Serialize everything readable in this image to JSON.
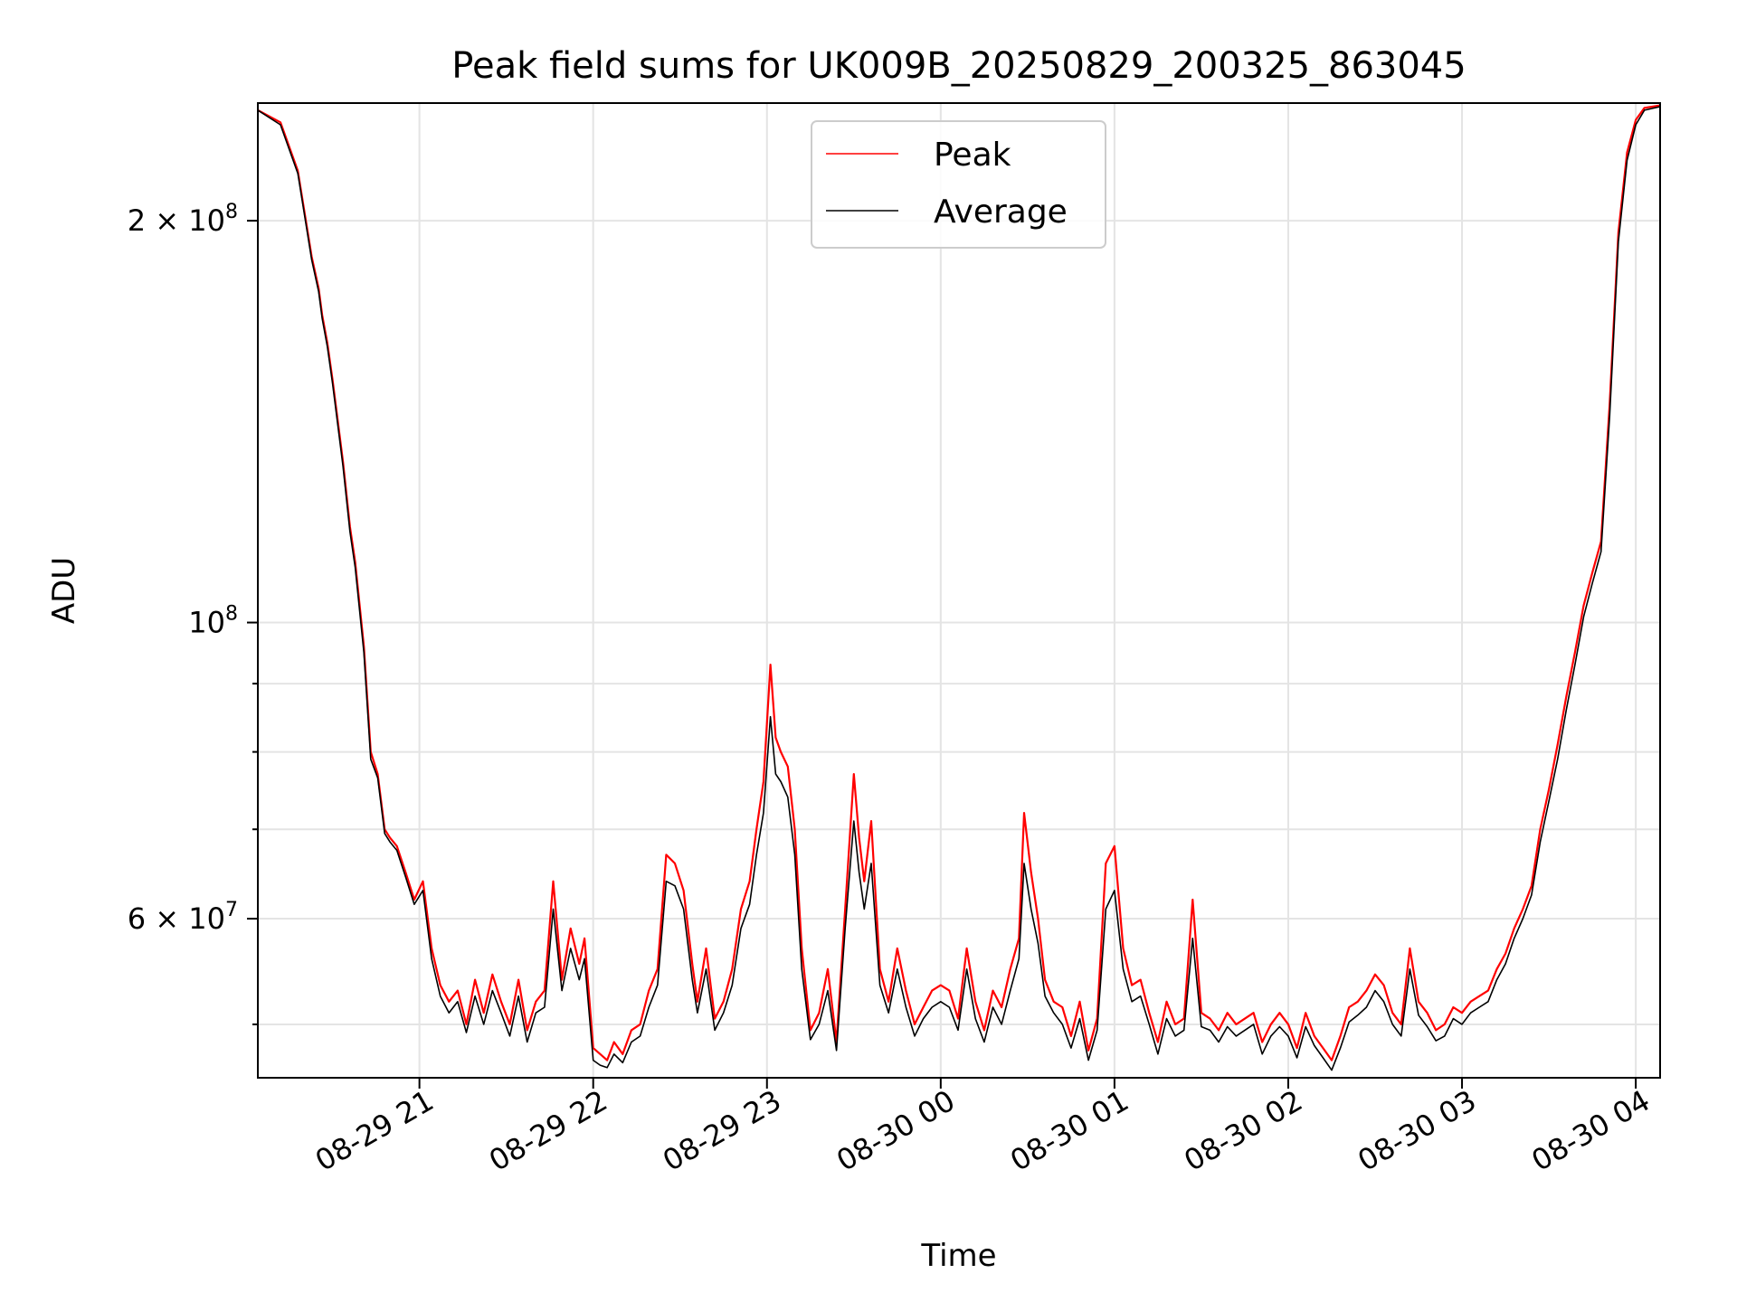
{
  "chart_data": {
    "type": "line",
    "title": "Peak field sums for UK009B_20250829_200325_863045",
    "xlabel": "Time",
    "ylabel": "ADU",
    "x_unit": "hours",
    "xlim": [
      20.07,
      28.14
    ],
    "ylim": [
      45600000,
      245000000
    ],
    "yscale": "log",
    "grid": true,
    "legend": "upper-center",
    "x_ticks": [
      {
        "value": 21,
        "label": "08-29 21"
      },
      {
        "value": 22,
        "label": "08-29 22"
      },
      {
        "value": 23,
        "label": "08-29 23"
      },
      {
        "value": 24,
        "label": "08-30 00"
      },
      {
        "value": 25,
        "label": "08-30 01"
      },
      {
        "value": 26,
        "label": "08-30 02"
      },
      {
        "value": 27,
        "label": "08-30 03"
      },
      {
        "value": 28,
        "label": "08-30 04"
      }
    ],
    "y_ticks": [
      {
        "value": 200000000,
        "mantissa": "2",
        "exponent": "8"
      },
      {
        "value": 100000000,
        "mantissa": "",
        "exponent": "8"
      },
      {
        "value": 60000000,
        "mantissa": "6",
        "exponent": "7"
      }
    ],
    "y_minor": [
      50000000,
      70000000,
      80000000,
      90000000
    ],
    "series": [
      {
        "name": "Peak",
        "color": "#ff0000",
        "x": [
          20.07,
          20.2,
          20.3,
          20.38,
          20.42,
          20.44,
          20.47,
          20.5,
          20.56,
          20.6,
          20.63,
          20.68,
          20.72,
          20.76,
          20.8,
          20.83,
          20.87,
          20.92,
          20.97,
          21.02,
          21.07,
          21.12,
          21.17,
          21.22,
          21.27,
          21.32,
          21.37,
          21.42,
          21.47,
          21.52,
          21.57,
          21.62,
          21.67,
          21.72,
          21.77,
          21.82,
          21.87,
          21.92,
          21.95,
          22.0,
          22.04,
          22.08,
          22.12,
          22.17,
          22.22,
          22.27,
          22.32,
          22.37,
          22.42,
          22.47,
          22.52,
          22.57,
          22.6,
          22.65,
          22.7,
          22.75,
          22.8,
          22.85,
          22.9,
          22.94,
          22.98,
          23.02,
          23.05,
          23.08,
          23.12,
          23.16,
          23.2,
          23.25,
          23.3,
          23.35,
          23.4,
          23.45,
          23.5,
          23.53,
          23.56,
          23.6,
          23.65,
          23.7,
          23.75,
          23.8,
          23.85,
          23.9,
          23.95,
          24.0,
          24.05,
          24.1,
          24.15,
          24.2,
          24.25,
          24.3,
          24.35,
          24.4,
          24.45,
          24.48,
          24.52,
          24.56,
          24.6,
          24.65,
          24.7,
          24.75,
          24.8,
          24.85,
          24.9,
          24.95,
          25.0,
          25.05,
          25.1,
          25.15,
          25.2,
          25.25,
          25.3,
          25.35,
          25.4,
          25.45,
          25.5,
          25.55,
          25.6,
          25.65,
          25.7,
          25.75,
          25.8,
          25.85,
          25.9,
          25.95,
          26.0,
          26.05,
          26.1,
          26.15,
          26.2,
          26.25,
          26.3,
          26.35,
          26.4,
          26.45,
          26.5,
          26.55,
          26.6,
          26.65,
          26.7,
          26.75,
          26.8,
          26.85,
          26.9,
          26.95,
          27.0,
          27.05,
          27.1,
          27.15,
          27.2,
          27.25,
          27.3,
          27.35,
          27.4,
          27.45,
          27.5,
          27.55,
          27.6,
          27.65,
          27.7,
          27.75,
          27.8,
          27.85,
          27.9,
          27.95,
          28.0,
          28.05,
          28.14
        ],
        "y": [
          242000000,
          237000000,
          218000000,
          188000000,
          178000000,
          170000000,
          162000000,
          152000000,
          132000000,
          118000000,
          111000000,
          96000000,
          80000000,
          77000000,
          70000000,
          69000000,
          68000000,
          65000000,
          62000000,
          64000000,
          57000000,
          53500000,
          52000000,
          53000000,
          50000000,
          54000000,
          51000000,
          54500000,
          52000000,
          50000000,
          54000000,
          49500000,
          52000000,
          53000000,
          64000000,
          54000000,
          59000000,
          55500000,
          58000000,
          48000000,
          47500000,
          47000000,
          48500000,
          47500000,
          49500000,
          50000000,
          53000000,
          55000000,
          67000000,
          66000000,
          63000000,
          55500000,
          52000000,
          57000000,
          50500000,
          52000000,
          55000000,
          61000000,
          64000000,
          70000000,
          76000000,
          93000000,
          82000000,
          80000000,
          78000000,
          70000000,
          57000000,
          49500000,
          51000000,
          55000000,
          48500000,
          61000000,
          77000000,
          69000000,
          64000000,
          71000000,
          55000000,
          52000000,
          57000000,
          53000000,
          50000000,
          51500000,
          53000000,
          53500000,
          53000000,
          50500000,
          57000000,
          52000000,
          49500000,
          53000000,
          51500000,
          55000000,
          58000000,
          72000000,
          65000000,
          60000000,
          54000000,
          52000000,
          51500000,
          49000000,
          52000000,
          47800000,
          50500000,
          66000000,
          68000000,
          57000000,
          53500000,
          54000000,
          51000000,
          48500000,
          52000000,
          50000000,
          50500000,
          62000000,
          51000000,
          50500000,
          49500000,
          51000000,
          50000000,
          50500000,
          51000000,
          48500000,
          50000000,
          51000000,
          50000000,
          48000000,
          51000000,
          49000000,
          48000000,
          47000000,
          49000000,
          51500000,
          52000000,
          53000000,
          54500000,
          53500000,
          51000000,
          50000000,
          57000000,
          52000000,
          51000000,
          49500000,
          50000000,
          51500000,
          51000000,
          52000000,
          52500000,
          53000000,
          55000000,
          56500000,
          59000000,
          61000000,
          63500000,
          70000000,
          75000000,
          81000000,
          88000000,
          95000000,
          103000000,
          109000000,
          115000000,
          146000000,
          196000000,
          225000000,
          238000000,
          243000000,
          244000000
        ]
      },
      {
        "name": "Average",
        "color": "#000000",
        "x": [
          20.07,
          20.2,
          20.3,
          20.38,
          20.42,
          20.44,
          20.47,
          20.5,
          20.56,
          20.6,
          20.63,
          20.68,
          20.72,
          20.76,
          20.8,
          20.83,
          20.87,
          20.92,
          20.97,
          21.02,
          21.07,
          21.12,
          21.17,
          21.22,
          21.27,
          21.32,
          21.37,
          21.42,
          21.47,
          21.52,
          21.57,
          21.62,
          21.67,
          21.72,
          21.77,
          21.82,
          21.87,
          21.92,
          21.95,
          22.0,
          22.04,
          22.08,
          22.12,
          22.17,
          22.22,
          22.27,
          22.32,
          22.37,
          22.42,
          22.47,
          22.52,
          22.57,
          22.6,
          22.65,
          22.7,
          22.75,
          22.8,
          22.85,
          22.9,
          22.94,
          22.98,
          23.02,
          23.05,
          23.08,
          23.12,
          23.16,
          23.2,
          23.25,
          23.3,
          23.35,
          23.4,
          23.45,
          23.5,
          23.53,
          23.56,
          23.6,
          23.65,
          23.7,
          23.75,
          23.8,
          23.85,
          23.9,
          23.95,
          24.0,
          24.05,
          24.1,
          24.15,
          24.2,
          24.25,
          24.3,
          24.35,
          24.4,
          24.45,
          24.48,
          24.52,
          24.56,
          24.6,
          24.65,
          24.7,
          24.75,
          24.8,
          24.85,
          24.9,
          24.95,
          25.0,
          25.05,
          25.1,
          25.15,
          25.2,
          25.25,
          25.3,
          25.35,
          25.4,
          25.45,
          25.5,
          25.55,
          25.6,
          25.65,
          25.7,
          25.75,
          25.8,
          25.85,
          25.9,
          25.95,
          26.0,
          26.05,
          26.1,
          26.15,
          26.2,
          26.25,
          26.3,
          26.35,
          26.4,
          26.45,
          26.5,
          26.55,
          26.6,
          26.65,
          26.7,
          26.75,
          26.8,
          26.85,
          26.9,
          26.95,
          27.0,
          27.05,
          27.1,
          27.15,
          27.2,
          27.25,
          27.3,
          27.35,
          27.4,
          27.45,
          27.5,
          27.55,
          27.6,
          27.65,
          27.7,
          27.75,
          27.8,
          27.85,
          27.9,
          27.95,
          28.0,
          28.05,
          28.14
        ],
        "y": [
          242000000,
          236000000,
          217000000,
          187000000,
          177000000,
          169000000,
          161000000,
          151000000,
          131000000,
          117000000,
          110000000,
          95000000,
          79000000,
          76500000,
          69500000,
          68500000,
          67500000,
          64500000,
          61500000,
          63000000,
          56000000,
          52500000,
          51000000,
          52000000,
          49300000,
          52500000,
          50000000,
          53000000,
          51000000,
          49000000,
          52500000,
          48500000,
          51000000,
          51500000,
          61000000,
          53000000,
          57000000,
          54000000,
          56000000,
          47000000,
          46600000,
          46400000,
          47500000,
          46800000,
          48500000,
          49000000,
          51500000,
          53500000,
          64000000,
          63500000,
          61000000,
          54000000,
          51000000,
          55000000,
          49500000,
          51000000,
          53500000,
          59000000,
          61500000,
          67000000,
          72000000,
          85000000,
          77000000,
          76000000,
          74000000,
          67000000,
          55000000,
          48700000,
          50000000,
          53000000,
          47800000,
          59000000,
          71000000,
          65000000,
          61000000,
          66000000,
          53500000,
          51000000,
          55000000,
          51500000,
          49000000,
          50500000,
          51500000,
          52000000,
          51500000,
          49500000,
          55000000,
          50500000,
          48500000,
          51500000,
          50000000,
          53000000,
          56000000,
          66000000,
          61000000,
          57500000,
          52500000,
          51000000,
          50000000,
          48000000,
          50500000,
          47000000,
          49500000,
          61000000,
          63000000,
          55000000,
          52000000,
          52500000,
          50000000,
          47500000,
          50500000,
          49000000,
          49500000,
          58000000,
          49800000,
          49500000,
          48500000,
          49800000,
          49000000,
          49500000,
          50000000,
          47500000,
          49000000,
          49800000,
          49000000,
          47200000,
          49800000,
          48200000,
          47200000,
          46200000,
          48000000,
          50200000,
          50800000,
          51500000,
          53000000,
          52000000,
          50000000,
          49000000,
          55000000,
          50800000,
          49800000,
          48600000,
          49000000,
          50500000,
          50000000,
          51000000,
          51500000,
          52000000,
          54000000,
          55500000,
          58000000,
          60000000,
          62500000,
          68500000,
          73500000,
          79000000,
          86000000,
          93000000,
          101000000,
          107000000,
          113000000,
          143000000,
          193000000,
          222000000,
          236000000,
          242000000,
          243500000
        ]
      }
    ]
  }
}
